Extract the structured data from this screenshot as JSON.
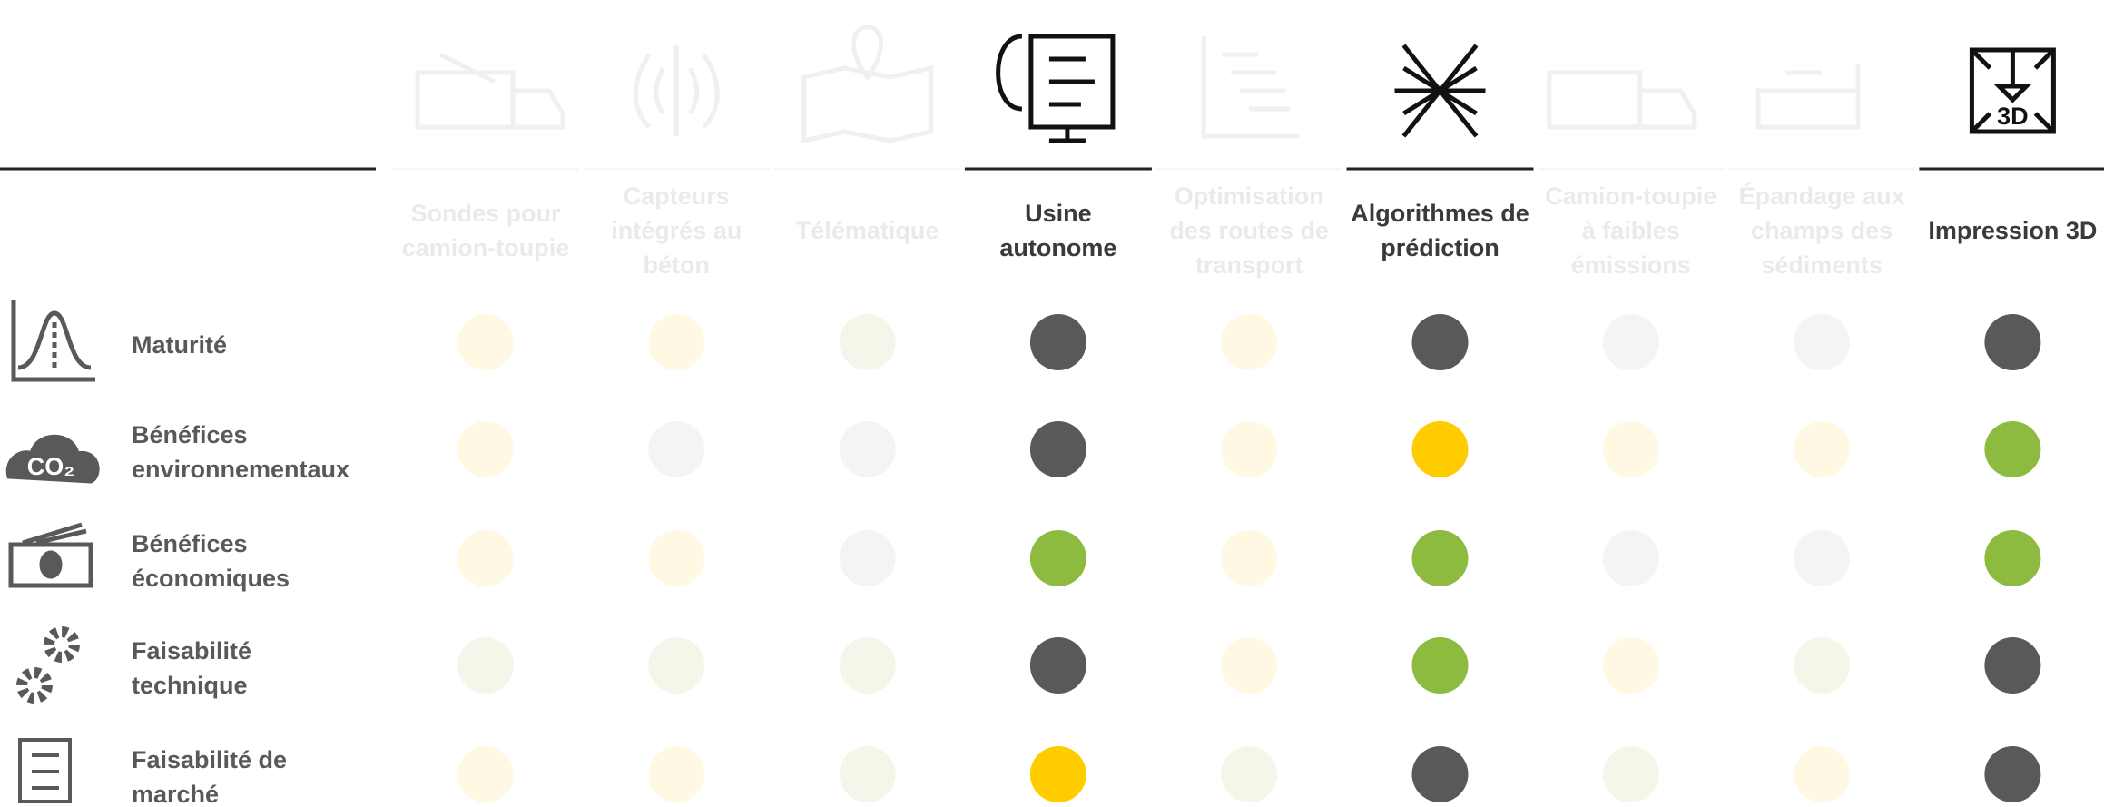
{
  "columns": [
    {
      "label": [
        "Sondes pour",
        "camion-toupie"
      ],
      "highlighted": false,
      "cells": [
        "yellow",
        "yellow",
        "yellow",
        "green",
        "yellow"
      ]
    },
    {
      "label": [
        "Capteurs",
        "intégrés au",
        "béton"
      ],
      "highlighted": false,
      "cells": [
        "yellow",
        "gray",
        "yellow",
        "green",
        "yellow"
      ]
    },
    {
      "label": [
        "Télématique"
      ],
      "highlighted": false,
      "cells": [
        "green",
        "gray",
        "gray",
        "green",
        "green"
      ]
    },
    {
      "label": [
        "Usine",
        "autonome"
      ],
      "highlighted": true,
      "cells": [
        "dark",
        "dark",
        "green",
        "dark",
        "yellow"
      ]
    },
    {
      "label": [
        "Optimisation",
        "des routes de",
        "transport"
      ],
      "highlighted": false,
      "cells": [
        "yellow",
        "yellow",
        "yellow",
        "yellow",
        "green"
      ]
    },
    {
      "label": [
        "Algorithmes de",
        "prédiction"
      ],
      "highlighted": true,
      "cells": [
        "dark",
        "yellow",
        "green",
        "green",
        "dark"
      ]
    },
    {
      "label": [
        "Camion-toupie",
        "à faibles",
        "émissions"
      ],
      "highlighted": false,
      "cells": [
        "gray",
        "yellow",
        "gray",
        "yellow",
        "green"
      ]
    },
    {
      "label": [
        "Épandage aux",
        "champs des",
        "sédiments"
      ],
      "highlighted": false,
      "cells": [
        "gray",
        "yellow",
        "gray",
        "green",
        "yellow"
      ]
    },
    {
      "label": [
        "Impression 3D"
      ],
      "highlighted": true,
      "cells": [
        "dark",
        "green",
        "green",
        "dark",
        "dark"
      ]
    }
  ],
  "rows": [
    {
      "label": [
        "Maturité"
      ]
    },
    {
      "label": [
        "Bénéfices",
        "environnementaux"
      ]
    },
    {
      "label": [
        "Bénéfices",
        "économiques"
      ]
    },
    {
      "label": [
        "Faisabilité",
        "technique"
      ]
    },
    {
      "label": [
        "Faisabilité de",
        "marché"
      ]
    }
  ],
  "status_colors": {
    "dark": "#58595b",
    "yellow": "#ffcc00",
    "green": "#8cbb3f",
    "gray": "#9a9a9a"
  },
  "icon_text": {
    "co2": "CO₂",
    "print3d": "3D"
  }
}
